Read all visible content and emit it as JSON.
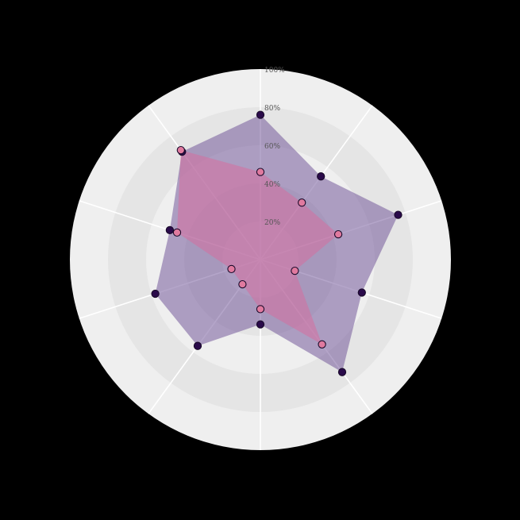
{
  "chart_data": {
    "type": "radar",
    "title": "",
    "axis_count": 10,
    "rlim": [
      0,
      100
    ],
    "ticks": [
      20,
      40,
      60,
      80,
      100
    ],
    "tick_labels": [
      "20%",
      "40%",
      "60%",
      "80%",
      "100%"
    ],
    "grid": true,
    "series": [
      {
        "values": [
          76,
          54,
          76,
          56,
          73,
          34,
          56,
          58,
          50,
          70
        ],
        "fill": "#6a4c93",
        "fill_opacity": 0.5,
        "marker": "#2a0a4a"
      },
      {
        "values": [
          46,
          37,
          43,
          19,
          55,
          26,
          16,
          16,
          46,
          71
        ],
        "fill": "#d96a9c",
        "fill_opacity": 0.5,
        "marker": "#e07a9f"
      }
    ]
  },
  "colors": {
    "background": "#000000",
    "band_outer": "#efefef",
    "band_inner": "#e5e5e5",
    "spoke": "#ffffff"
  }
}
